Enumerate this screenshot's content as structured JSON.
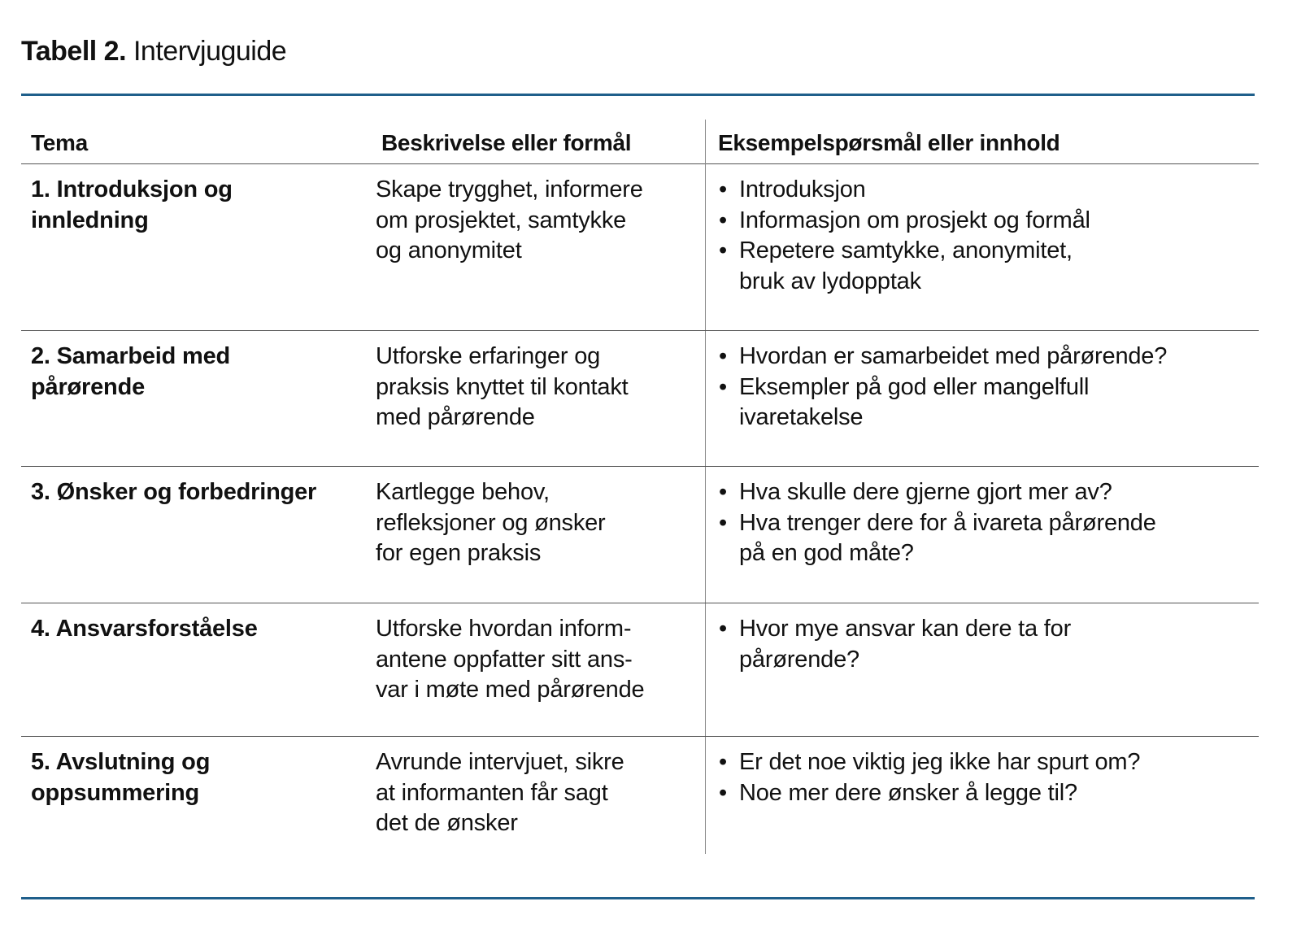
{
  "title": {
    "label": "Tabell 2.",
    "text": "Intervjuguide"
  },
  "colors": {
    "rule": "#1f5f8b"
  },
  "headers": [
    "Tema",
    "Beskrivelse eller formål",
    "Eksempelspørsmål eller innhold"
  ],
  "rows": [
    {
      "tema": [
        "1. Introduksjon og",
        "innledning"
      ],
      "beskrivelse": [
        "Skape trygghet, informere",
        "om prosjektet, samtykke",
        "og anonymitet"
      ],
      "bullets": [
        [
          "Introduksjon"
        ],
        [
          "Informasjon om prosjekt og formål"
        ],
        [
          "Repetere samtykke, anonymitet,",
          "bruk av lydopptak"
        ]
      ]
    },
    {
      "tema": [
        "2. Samarbeid med",
        "pårørende"
      ],
      "beskrivelse": [
        "Utforske erfaringer og",
        "praksis knyttet til kontakt",
        "med pårørende"
      ],
      "bullets": [
        [
          "Hvordan er samarbeidet med pårørende?"
        ],
        [
          "Eksempler på god eller mangelfull",
          "ivaretakelse"
        ]
      ]
    },
    {
      "tema": [
        "3. Ønsker og forbedringer"
      ],
      "beskrivelse": [
        "Kartlegge behov,",
        "refleksjoner og ønsker",
        "for egen praksis"
      ],
      "bullets": [
        [
          "Hva skulle dere gjerne gjort mer av?"
        ],
        [
          "Hva trenger dere for å ivareta pårørende",
          "på en god måte?"
        ]
      ]
    },
    {
      "tema": [
        "4. Ansvarsforståelse"
      ],
      "beskrivelse": [
        "Utforske hvordan inform-",
        "antene oppfatter sitt ans-",
        "var i møte med pårørende"
      ],
      "bullets": [
        [
          "Hvor mye ansvar kan dere ta for",
          "pårørende?"
        ]
      ]
    },
    {
      "tema": [
        "5. Avslutning og",
        "oppsummering"
      ],
      "beskrivelse": [
        "Avrunde intervjuet, sikre",
        "at informanten får sagt",
        "det de ønsker"
      ],
      "bullets": [
        [
          "Er det noe viktig jeg ikke har spurt om?"
        ],
        [
          "Noe mer dere ønsker å legge til?"
        ]
      ]
    }
  ]
}
